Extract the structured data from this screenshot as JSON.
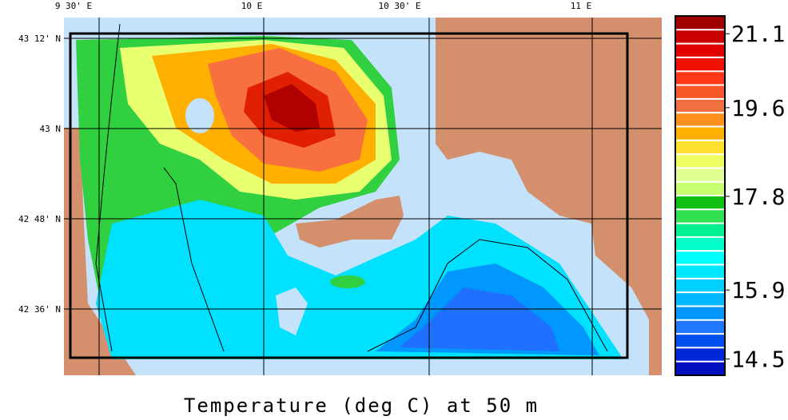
{
  "map": {
    "title": "Temperature (deg C) at 50 m",
    "lon_labels": [
      "9 30' E",
      "10 E",
      "10 30' E",
      "11 E"
    ],
    "lat_labels": [
      "43 12' N",
      "43 N",
      "42 48' N",
      "42 36' N"
    ],
    "colorbar": {
      "lim": [
        14.17,
        21.46
      ],
      "ticks": [
        21.1,
        19.6,
        17.8,
        15.9,
        14.5
      ],
      "colors": [
        "#a00000",
        "#c80000",
        "#e00000",
        "#f01000",
        "#ff3818",
        "#f85828",
        "#f07040",
        "#ff9020",
        "#ffb000",
        "#ffe030",
        "#f0ff60",
        "#e0ff90",
        "#c8ff70",
        "#10c010",
        "#30e050",
        "#00f090",
        "#00ffc8",
        "#00ffff",
        "#00e8ff",
        "#00d0ff",
        "#00b8ff",
        "#0098ff",
        "#2078ff",
        "#0050f0",
        "#0028d8",
        "#0010c0"
      ]
    }
  }
}
